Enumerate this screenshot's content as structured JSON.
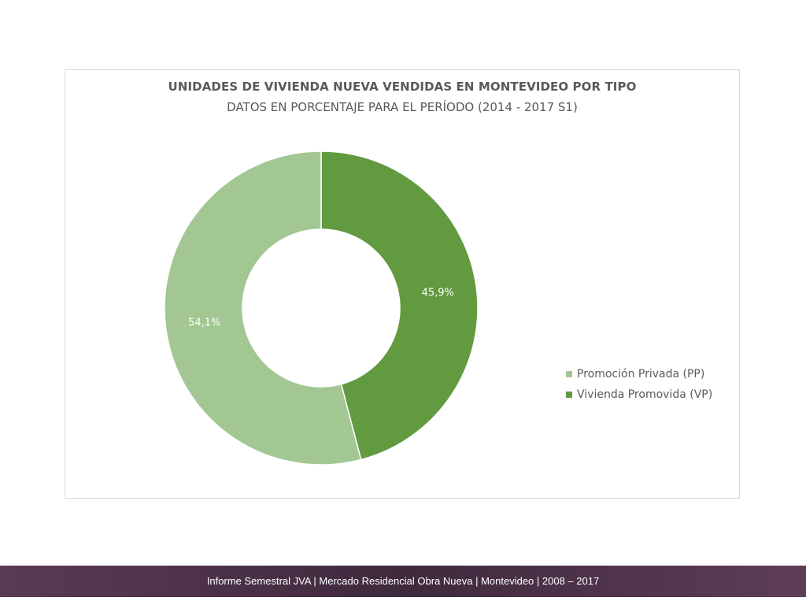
{
  "chart": {
    "title": "UNIDADES DE VIVIENDA NUEVA VENDIDAS EN MONTEVIDEO POR TIPO",
    "subtitle": "DATOS EN PORCENTAJE PARA EL PERÍODO (2014 - 2017 S1)",
    "legend": [
      {
        "label": "Promoción Privada (PP)",
        "color": "#a3c793"
      },
      {
        "label": "Vivienda Promovida (VP)",
        "color": "#629a3f"
      }
    ]
  },
  "chart_data": {
    "type": "pie",
    "variant": "donut",
    "title": "UNIDADES DE VIVIENDA NUEVA VENDIDAS EN MONTEVIDEO POR TIPO",
    "subtitle": "DATOS EN PORCENTAJE PARA EL PERÍODO (2014 - 2017 S1)",
    "categories": [
      "Promoción Privada (PP)",
      "Vivienda Promovida (VP)"
    ],
    "values": [
      54.1,
      45.9
    ],
    "data_labels": [
      "54,1%",
      "45,9%"
    ],
    "colors": [
      "#a3c793",
      "#629a3f"
    ],
    "legend_position": "right",
    "start": "Vivienda Promovida (VP) clockwise from top"
  },
  "footer": {
    "text": "Informe Semestral JVA | Mercado Residencial Obra Nueva | Montevideo | 2008 – 2017"
  }
}
